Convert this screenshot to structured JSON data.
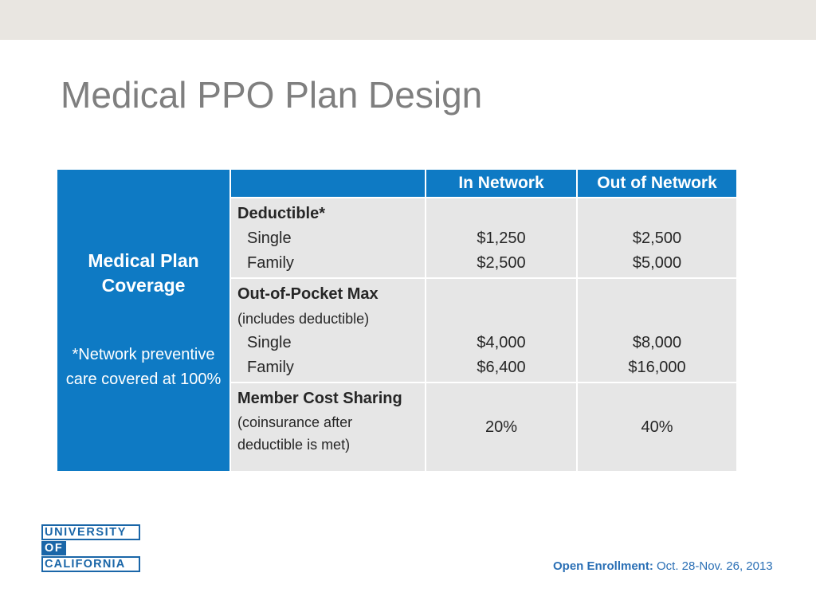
{
  "title": "Medical PPO Plan Design",
  "sidebar": {
    "heading": "Medical Plan Coverage",
    "note": "*Network preventive care covered at 100%"
  },
  "table": {
    "columns": [
      "",
      "In Network",
      "Out of Network"
    ],
    "rows": [
      {
        "label": "Deductible*",
        "sub_items": [
          "Single",
          "Family"
        ],
        "in_network": [
          "$1,250",
          "$2,500"
        ],
        "out_network": [
          "$2,500",
          "$5,000"
        ]
      },
      {
        "label": "Out-of-Pocket Max",
        "note": "(includes deductible)",
        "sub_items": [
          "Single",
          "Family"
        ],
        "in_network": [
          "$4,000",
          "$6,400"
        ],
        "out_network": [
          "$8,000",
          "$16,000"
        ]
      },
      {
        "label": "Member Cost Sharing",
        "note": "(coinsurance after deductible is met)",
        "in_network": [
          "20%"
        ],
        "out_network": [
          "40%"
        ]
      }
    ]
  },
  "logo": {
    "line1": "UNIVERSITY",
    "line2": "OF",
    "line3": "CALIFORNIA"
  },
  "footer": {
    "label": "Open Enrollment:",
    "dates": "Oct. 28-Nov. 26, 2013"
  },
  "colors": {
    "header_blue": "#0e7ac4",
    "cell_gray": "#e6e6e6",
    "title_gray": "#7f7f7f",
    "brand_blue": "#1a66a8"
  }
}
